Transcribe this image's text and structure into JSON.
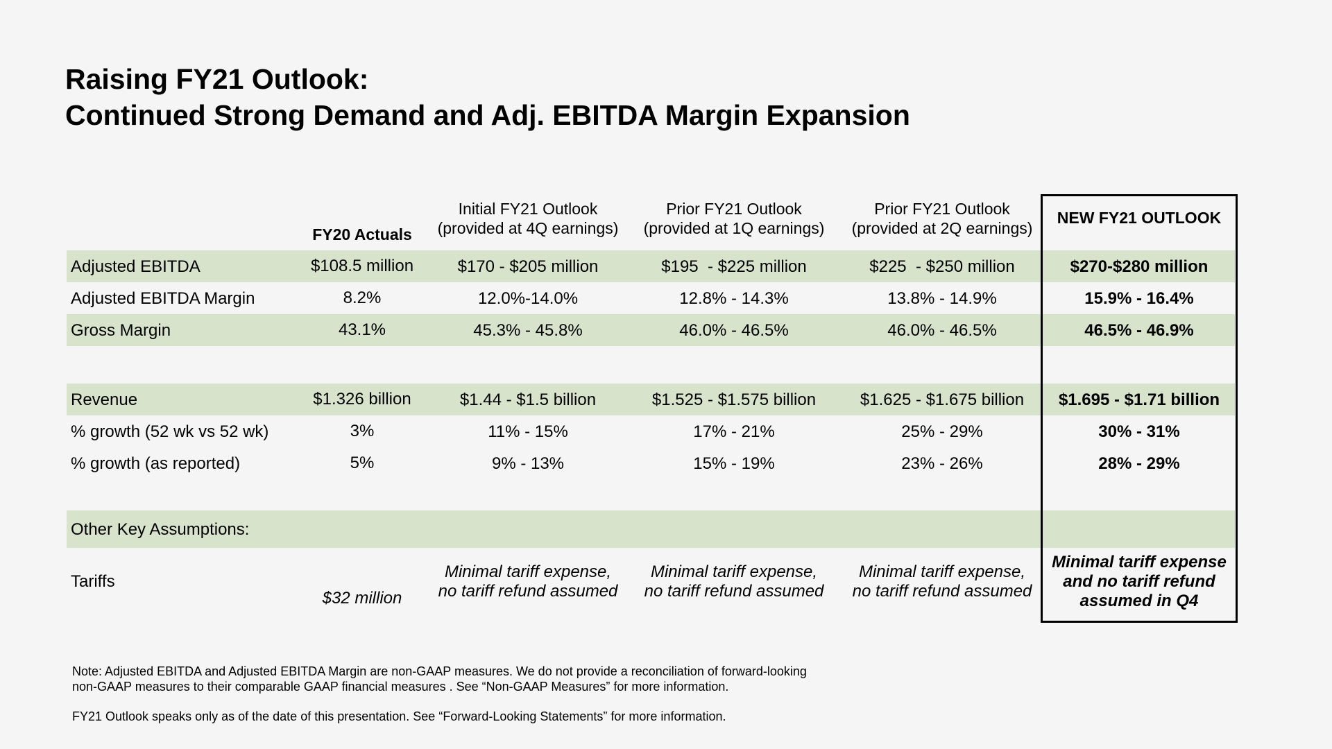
{
  "title": {
    "line1": "Raising FY21 Outlook:",
    "line2": "Continued Strong Demand and Adj. EBITDA Margin Expansion"
  },
  "headers": {
    "fy20": "FY20 Actuals",
    "initial_l1": "Initial FY21 Outlook",
    "initial_l2": "(provided at 4Q earnings)",
    "prior1q_l1": "Prior FY21 Outlook",
    "prior1q_l2": "(provided at 1Q earnings)",
    "prior2q_l1": "Prior FY21 Outlook",
    "prior2q_l2": "(provided at 2Q earnings)",
    "new": "NEW FY21 OUTLOOK"
  },
  "rows": [
    {
      "label": "Adjusted EBITDA",
      "fy20": "$108.5 million",
      "initial": "$170 - $205 million",
      "prior1q": "$195  - $225 million",
      "prior2q": "$225  - $250 million",
      "new": "$270-$280 million"
    },
    {
      "label": "Adjusted EBITDA Margin",
      "fy20": "8.2%",
      "initial": "12.0%-14.0%",
      "prior1q": "12.8% - 14.3%",
      "prior2q": "13.8% - 14.9%",
      "new": "15.9% - 16.4%"
    },
    {
      "label": "Gross Margin",
      "fy20": "43.1%",
      "initial": "45.3% - 45.8%",
      "prior1q": "46.0% - 46.5%",
      "prior2q": "46.0% - 46.5%",
      "new": "46.5% - 46.9%"
    },
    {
      "label": "Revenue",
      "fy20": "$1.326 billion",
      "initial": "$1.44 - $1.5 billion",
      "prior1q": "$1.525 - $1.575 billion",
      "prior2q": "$1.625 - $1.675 billion",
      "new": "$1.695 - $1.71 billion"
    },
    {
      "label": "% growth (52 wk vs 52 wk)",
      "fy20": "3%",
      "initial": "11% - 15%",
      "prior1q": "17% - 21%",
      "prior2q": "25% - 29%",
      "new": "30% - 31%"
    },
    {
      "label": "% growth (as reported)",
      "fy20": "5%",
      "initial": "9% - 13%",
      "prior1q": "15% - 19%",
      "prior2q": "23% - 26%",
      "new": "28% - 29%"
    }
  ],
  "other": {
    "label": "Other Key Assumptions:",
    "tariffs_label": "Tariffs",
    "fy20": "$32 million",
    "initial_l1": "Minimal tariff expense,",
    "initial_l2": "no tariff refund assumed",
    "prior1q_l1": "Minimal tariff expense,",
    "prior1q_l2": "no tariff refund assumed",
    "prior2q_l1": "Minimal tariff expense,",
    "prior2q_l2": "no tariff refund assumed",
    "new_l1": "Minimal tariff expense",
    "new_l2": "and no tariff refund",
    "new_l3": "assumed in Q4"
  },
  "notes": {
    "line1": "Note: Adjusted EBITDA and Adjusted EBITDA Margin are non-GAAP measures.  We do not provide a reconciliation of forward-looking",
    "line2": "non-GAAP measures to their comparable GAAP financial measures . See “Non-GAAP Measures” for more information.",
    "line3": "FY21 Outlook speaks only as of the date of this presentation.  See “Forward-Looking Statements” for more information."
  },
  "colors": {
    "band": "#d7e3cb",
    "background": "#f5f5f5"
  }
}
